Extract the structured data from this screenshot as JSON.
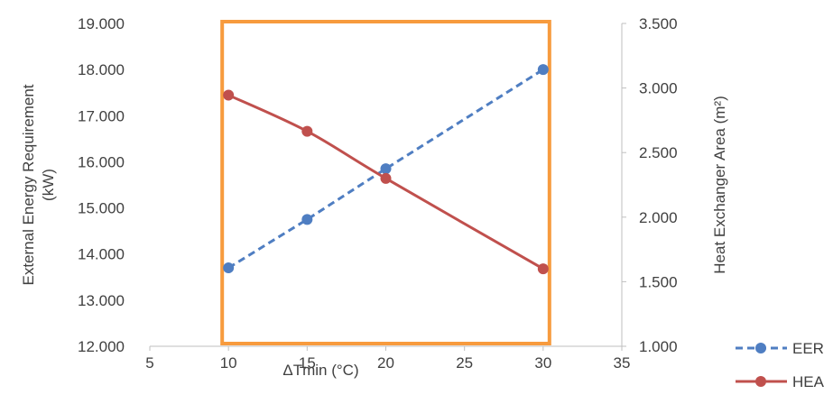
{
  "chart_data": {
    "type": "line",
    "title": "",
    "xlabel": "ΔTmin (°C)",
    "ylabel_left": "External Energy Requirement (kW)",
    "ylabel_left_lines": [
      "External Energy Requirement",
      "(kW)"
    ],
    "ylabel_right": "Heat Exchanger Area (m²)",
    "xlim": [
      5,
      35
    ],
    "xticks": [
      "5",
      "10",
      "15",
      "20",
      "25",
      "30",
      "35"
    ],
    "ylim_left": [
      12000,
      19000
    ],
    "yticks_left": [
      "12.000",
      "13.000",
      "14.000",
      "15.000",
      "16.000",
      "17.000",
      "18.000",
      "19.000"
    ],
    "ylim_right": [
      1000,
      3500
    ],
    "yticks_right": [
      "1.000",
      "1.500",
      "2.000",
      "2.500",
      "3.000",
      "3.500"
    ],
    "grid": false,
    "legend_position": "bottom-right",
    "highlight_box": {
      "x_range": [
        9.6,
        30.4
      ],
      "color": "#F79B3E"
    },
    "series": [
      {
        "name": "EER",
        "axis": "left",
        "style": "dashed",
        "color": "#4F7EC2",
        "x": [
          10,
          15,
          20,
          30
        ],
        "values": [
          13700,
          14750,
          15850,
          18000
        ]
      },
      {
        "name": "HEA",
        "axis": "right",
        "style": "solid",
        "color": "#C0504D",
        "x": [
          10,
          15,
          20,
          30
        ],
        "values": [
          2945,
          2665,
          2300,
          1600
        ]
      }
    ]
  }
}
